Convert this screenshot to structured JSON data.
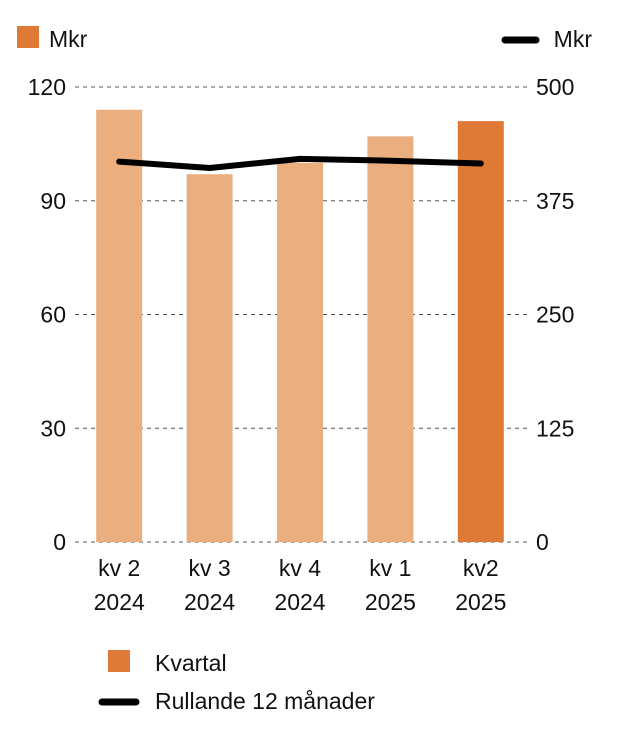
{
  "chart_data": {
    "type": "bar",
    "categories": [
      [
        "kv 2",
        "2024"
      ],
      [
        "kv 3",
        "2024"
      ],
      [
        "kv 4",
        "2024"
      ],
      [
        "kv 1",
        "2025"
      ],
      [
        "kv2",
        "2025"
      ]
    ],
    "series": [
      {
        "name": "Kvartal",
        "type": "bar",
        "axis": "left",
        "values": [
          114,
          97,
          100,
          107,
          111
        ],
        "colors": [
          "#EBAF7F",
          "#EBAF7F",
          "#EBAF7F",
          "#EBAF7F",
          "#DE7936"
        ]
      },
      {
        "name": "Rullande 12 månader",
        "type": "line",
        "axis": "right",
        "values": [
          418,
          411,
          421,
          419,
          416
        ],
        "color": "#000000"
      }
    ],
    "y_left": {
      "unit": "Mkr",
      "ticks": [
        0,
        30,
        60,
        90,
        120
      ],
      "range": [
        0,
        120
      ]
    },
    "y_right": {
      "unit": "Mkr",
      "ticks": [
        0,
        125,
        250,
        375,
        500
      ],
      "range": [
        0,
        500
      ]
    },
    "grid": "dashed horizontal",
    "legend": [
      "bottom-left"
    ]
  },
  "header": {
    "left_unit": "Mkr",
    "right_unit": "Mkr"
  },
  "colors": {
    "bar_light": "#EBAF7F",
    "bar_highlight": "#DE7936",
    "line": "#000000",
    "grid": "#555555"
  }
}
